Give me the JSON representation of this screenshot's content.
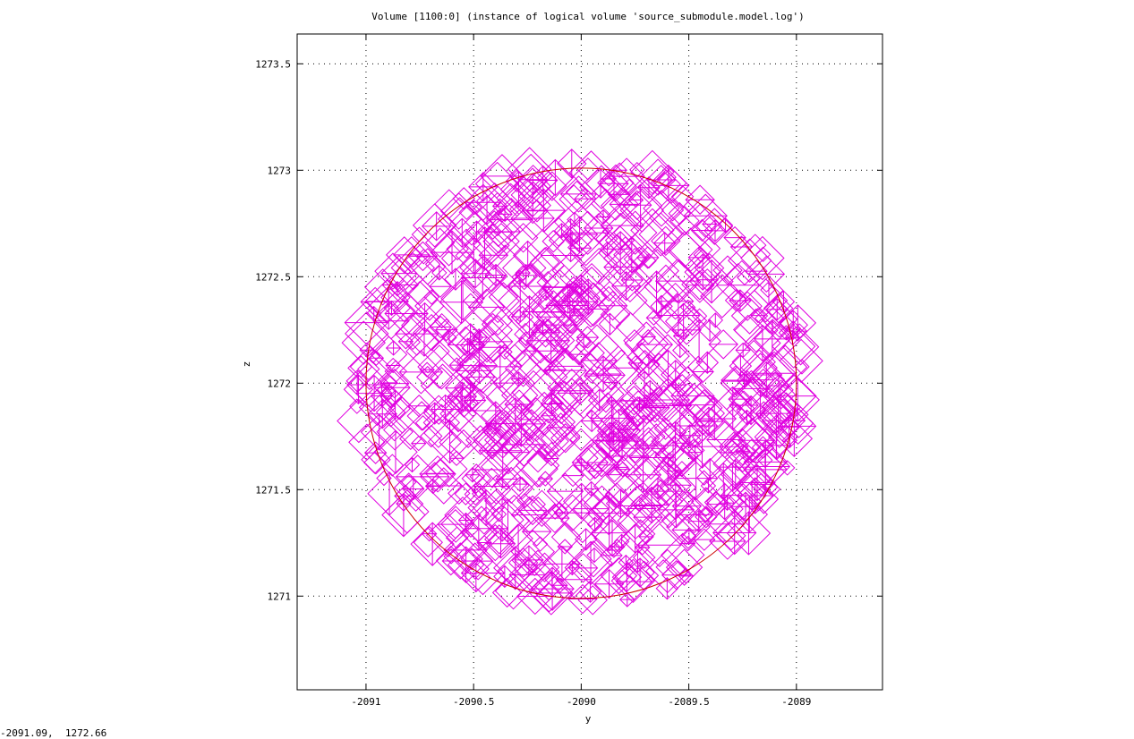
{
  "chart_data": {
    "type": "scatter",
    "title": "Volume [1100:0] (instance of logical volume 'source_submodule.model.log')",
    "xlabel": "y",
    "ylabel": "z",
    "xlim": [
      -2091.32,
      -2088.6
    ],
    "ylim": [
      1270.56,
      1273.64
    ],
    "x_ticks": [
      {
        "value": -2091,
        "label": "-2091"
      },
      {
        "value": -2090.5,
        "label": "-2090.5"
      },
      {
        "value": -2090,
        "label": "-2090"
      },
      {
        "value": -2089.5,
        "label": "-2089.5"
      },
      {
        "value": -2089,
        "label": "-2089"
      }
    ],
    "y_ticks": [
      {
        "value": 1271,
        "label": "1271"
      },
      {
        "value": 1271.5,
        "label": "1271.5"
      },
      {
        "value": 1272,
        "label": "1272"
      },
      {
        "value": 1272.5,
        "label": "1272.5"
      },
      {
        "value": 1273,
        "label": "1273"
      },
      {
        "value": 1273.5,
        "label": "1273.5"
      }
    ],
    "grid": true,
    "outline": {
      "shape": "circle",
      "center": [
        -2090.0,
        1272.0
      ],
      "radius": 1.0,
      "color": "#cc0000"
    },
    "marker": {
      "shape": "diamond",
      "color": "#e000e0",
      "count": 900
    },
    "point_region": {
      "center": [
        -2090.0,
        1272.0
      ],
      "radius": 1.05
    }
  },
  "coordinate_readout": "-2091.09,  1272.66",
  "colors": {
    "background": "#ffffff",
    "frame": "#000000",
    "grid": "#000000",
    "points": "#e000e0",
    "outline": "#cc0000"
  }
}
